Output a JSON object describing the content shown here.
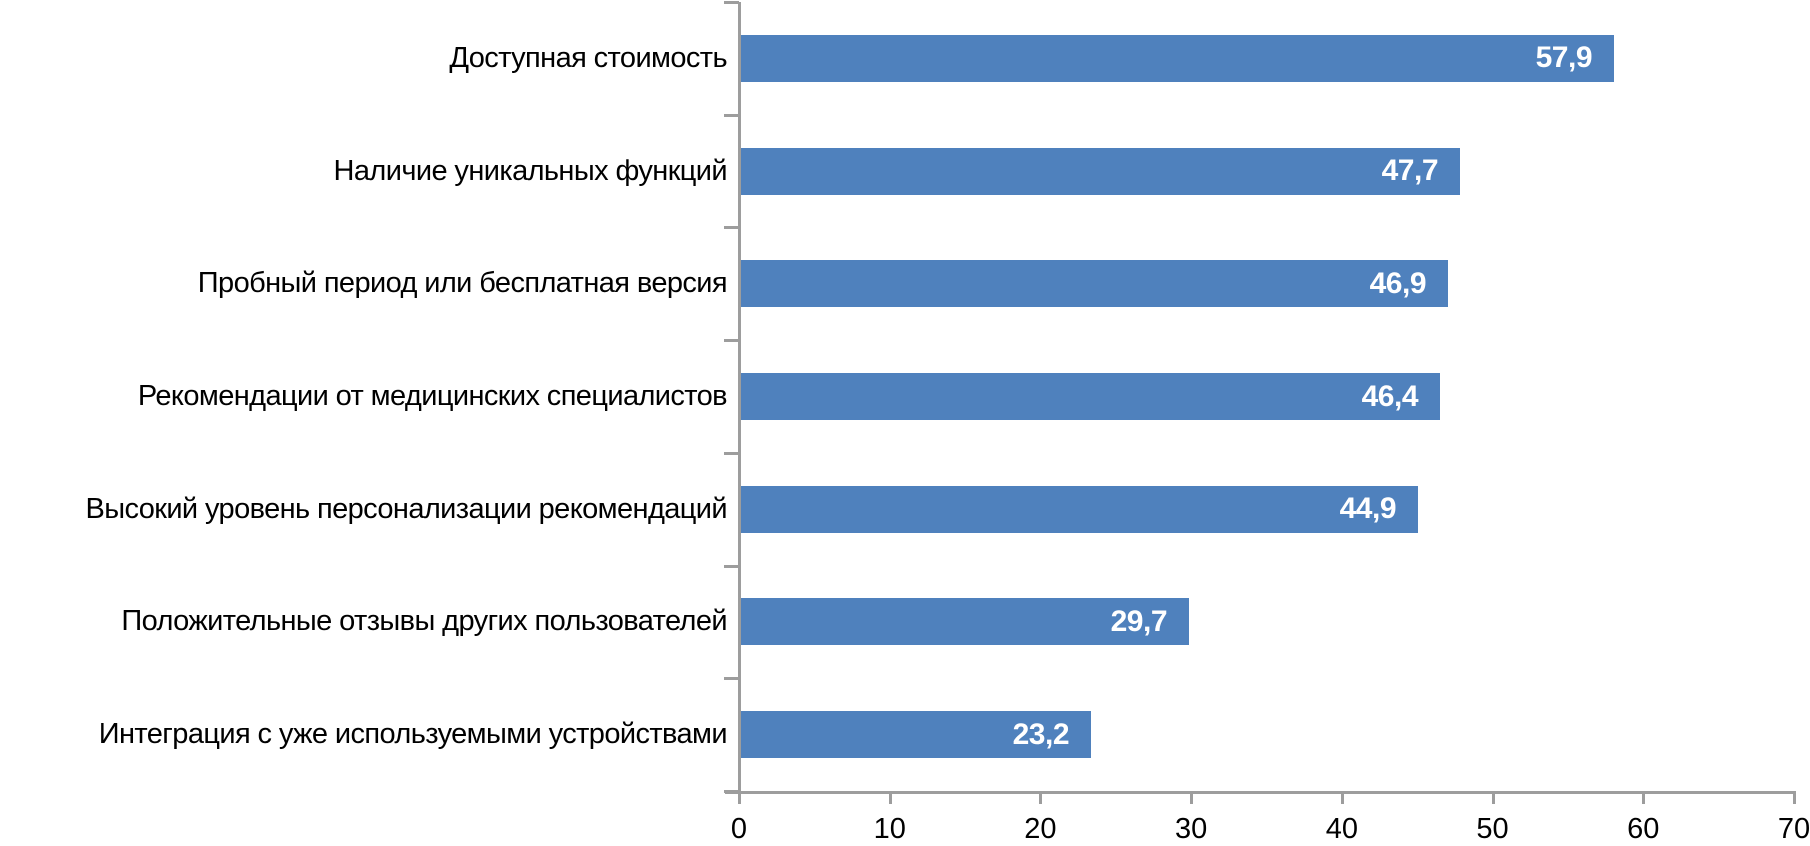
{
  "chart_data": {
    "type": "bar",
    "orientation": "horizontal",
    "title": "",
    "xlabel": "",
    "ylabel": "",
    "categories": [
      "Доступная стоимость",
      "Наличие уникальных функций",
      "Пробный период или бесплатная версия",
      "Рекомендации от медицинских специалистов",
      "Высокий уровень персонализации рекомендаций",
      "Положительные отзывы других пользователей",
      "Интеграция с уже используемыми устройствами"
    ],
    "values": [
      57.9,
      47.7,
      46.9,
      46.4,
      44.9,
      29.7,
      23.2
    ],
    "value_labels": [
      "57,9",
      "47,7",
      "46,9",
      "46,4",
      "44,9",
      "29,7",
      "23,2"
    ],
    "xlim": [
      0,
      70
    ],
    "x_ticks": [
      0,
      10,
      20,
      30,
      40,
      50,
      60,
      70
    ],
    "x_tick_labels": [
      "0",
      "10",
      "20",
      "30",
      "40",
      "50",
      "60",
      "70"
    ],
    "grid": false,
    "legend": false,
    "bar_color": "#4F81BD",
    "axis_color": "#9D9D9D",
    "value_label_color": "#FFFFFF",
    "text_color": "#000000"
  }
}
